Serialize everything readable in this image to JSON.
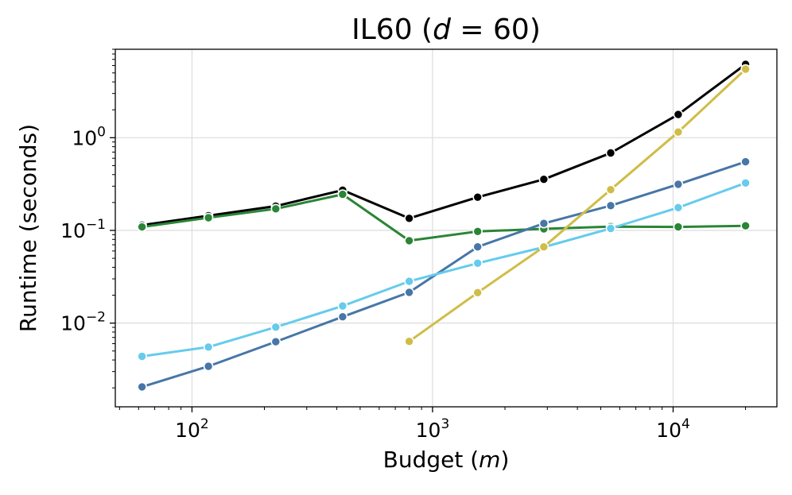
{
  "chart_data": {
    "type": "line",
    "title": "IL60 (d = 60)",
    "title_parts": {
      "prefix": "IL60 (",
      "var": "d",
      "equals": " = 60)"
    },
    "xlabel": "Budget (m)",
    "xlabel_parts": {
      "prefix": "Budget (",
      "var": "m",
      "suffix": ")"
    },
    "ylabel": "Runtime (seconds)",
    "xscale": "log",
    "yscale": "log",
    "xlim": [
      48,
      27000
    ],
    "ylim": [
      0.00125,
      9.0
    ],
    "grid": true,
    "x_ticks": [
      {
        "value": 100,
        "base": "10",
        "exp": "2"
      },
      {
        "value": 1000,
        "base": "10",
        "exp": "3"
      },
      {
        "value": 10000,
        "base": "10",
        "exp": "4"
      }
    ],
    "y_ticks": [
      {
        "value": 0.01,
        "base": "10",
        "exp": "−2"
      },
      {
        "value": 0.1,
        "base": "10",
        "exp": "−1"
      },
      {
        "value": 1,
        "base": "10",
        "exp": "0"
      }
    ],
    "series": [
      {
        "name": "series-black",
        "color": "#000000",
        "x": [
          62,
          117,
          223,
          423,
          800,
          1540,
          2900,
          5500,
          10500,
          20000
        ],
        "values": [
          0.114,
          0.144,
          0.183,
          0.272,
          0.135,
          0.228,
          0.356,
          0.685,
          1.78,
          6.2
        ]
      },
      {
        "name": "series-green",
        "color": "#2a8536",
        "x": [
          62,
          117,
          223,
          423,
          800,
          1540,
          2900,
          5500,
          10500,
          20000
        ],
        "values": [
          0.109,
          0.137,
          0.171,
          0.245,
          0.0775,
          0.0975,
          0.104,
          0.11,
          0.109,
          0.112
        ]
      },
      {
        "name": "series-blue",
        "color": "#4776a7",
        "x": [
          62,
          117,
          223,
          423,
          800,
          1540,
          2900,
          5500,
          10500,
          20000
        ],
        "values": [
          0.00205,
          0.00342,
          0.0063,
          0.0117,
          0.0215,
          0.0665,
          0.119,
          0.185,
          0.315,
          0.55
        ]
      },
      {
        "name": "series-cyan",
        "color": "#66cbec",
        "x": [
          62,
          117,
          223,
          423,
          800,
          1540,
          2900,
          5500,
          10500,
          20000
        ],
        "values": [
          0.00438,
          0.00552,
          0.00905,
          0.0153,
          0.0282,
          0.0442,
          0.066,
          0.105,
          0.176,
          0.325
        ]
      },
      {
        "name": "series-yellow",
        "color": "#cfbd47",
        "x": [
          800,
          1540,
          2900,
          5500,
          10500,
          20000
        ],
        "values": [
          0.00635,
          0.0213,
          0.0665,
          0.275,
          1.15,
          5.5
        ]
      }
    ]
  }
}
